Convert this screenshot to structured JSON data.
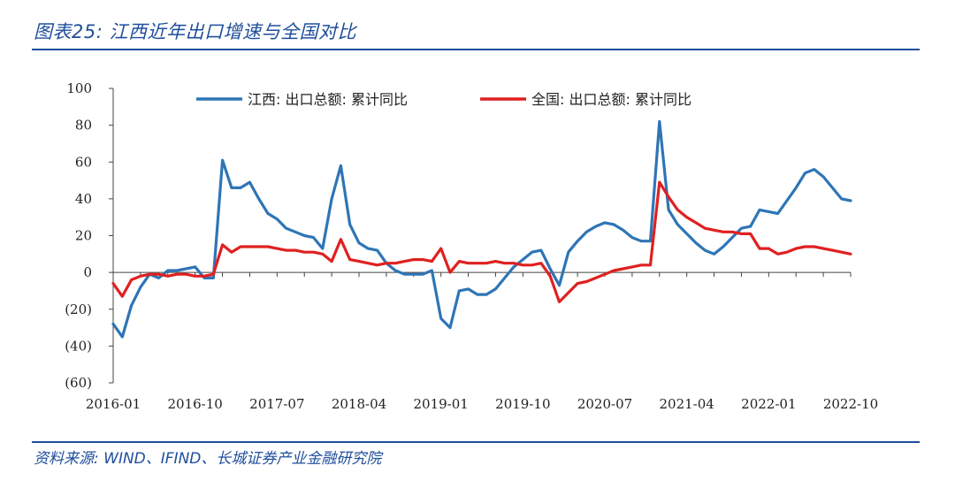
{
  "figure": {
    "title": "图表25:  江西近年出口增速与全国对比",
    "source": "资料来源:  WIND、IFIND、长城证券产业金融研究院"
  },
  "chart_data": {
    "type": "line",
    "ylim": [
      -60,
      100
    ],
    "yticks": [
      100,
      80,
      60,
      40,
      20,
      0,
      -20,
      -40,
      -60
    ],
    "ytick_labels": [
      "100",
      "80",
      "60",
      "40",
      "20",
      "0",
      "(20)",
      "(40)",
      "(60)"
    ],
    "xtick_labels": [
      "2016-01",
      "2016-10",
      "2017-07",
      "2018-04",
      "2019-01",
      "2019-10",
      "2020-07",
      "2021-04",
      "2022-01",
      "2022-10"
    ],
    "x_start": "2016-01",
    "frequency": "monthly",
    "grid": false,
    "legend_position": "top",
    "series": [
      {
        "name": "江西: 出口总额: 累计同比",
        "color": "#2e75b6",
        "values": [
          -28,
          -35,
          -18,
          -8,
          -1,
          -3,
          1,
          1,
          2,
          3,
          -3,
          -3,
          61,
          46,
          46,
          49,
          40,
          32,
          29,
          24,
          22,
          20,
          19,
          13,
          40,
          58,
          26,
          16,
          13,
          12,
          5,
          1,
          -1,
          -1,
          -1,
          1,
          -25,
          -30,
          -10,
          -9,
          -12,
          -12,
          -9,
          -3,
          3,
          7,
          11,
          12,
          2,
          -7,
          11,
          17,
          22,
          25,
          27,
          26,
          23,
          19,
          17,
          17,
          82,
          34,
          26,
          21,
          16,
          12,
          10,
          14,
          19,
          24,
          25,
          34,
          33,
          32,
          39,
          46,
          54,
          56,
          52,
          46,
          40,
          39
        ]
      },
      {
        "name": "全国: 出口总额: 累计同比",
        "color": "#e02020",
        "values": [
          -6,
          -13,
          -4,
          -2,
          -1,
          -1,
          -2,
          -1,
          -1,
          -2,
          -2,
          -1,
          15,
          11,
          14,
          14,
          14,
          14,
          13,
          12,
          12,
          11,
          11,
          10,
          6,
          18,
          7,
          6,
          5,
          4,
          5,
          5,
          6,
          7,
          7,
          6,
          13,
          0,
          6,
          5,
          5,
          5,
          6,
          5,
          5,
          4,
          4,
          5,
          -2,
          -16,
          -11,
          -6,
          -5,
          -3,
          -1,
          1,
          2,
          3,
          4,
          4,
          49,
          41,
          34,
          30,
          27,
          24,
          23,
          22,
          22,
          21,
          21,
          13,
          13,
          10,
          11,
          13,
          14,
          14,
          13,
          12,
          11,
          10
        ]
      }
    ]
  }
}
